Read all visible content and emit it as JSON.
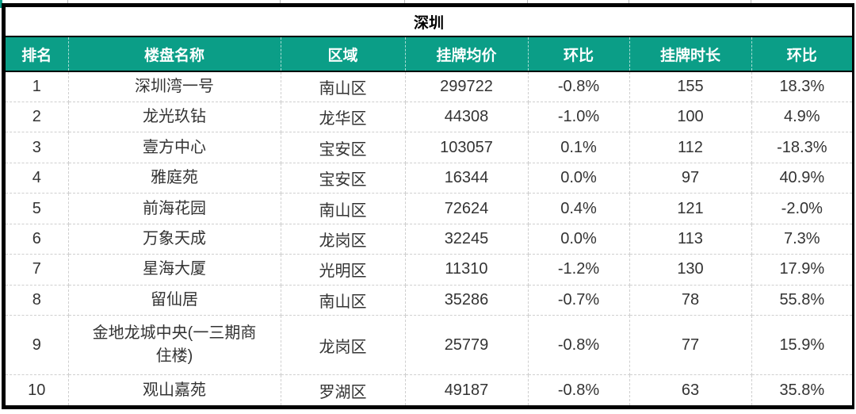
{
  "table": {
    "title": "深圳",
    "columns": [
      "排名",
      "楼盘名称",
      "区域",
      "挂牌均价",
      "环比",
      "挂牌时长",
      "环比"
    ],
    "rows": [
      {
        "rank": "1",
        "name": "深圳湾一号",
        "district": "南山区",
        "avg_price": "299722",
        "price_mom": "-0.8%",
        "listing_days": "155",
        "days_mom": "18.3%"
      },
      {
        "rank": "2",
        "name": "龙光玖钻",
        "district": "龙华区",
        "avg_price": "44308",
        "price_mom": "-1.0%",
        "listing_days": "100",
        "days_mom": "4.9%"
      },
      {
        "rank": "3",
        "name": "壹方中心",
        "district": "宝安区",
        "avg_price": "103057",
        "price_mom": "0.1%",
        "listing_days": "112",
        "days_mom": "-18.3%"
      },
      {
        "rank": "4",
        "name": "雅庭苑",
        "district": "宝安区",
        "avg_price": "16344",
        "price_mom": "0.0%",
        "listing_days": "97",
        "days_mom": "40.9%"
      },
      {
        "rank": "5",
        "name": "前海花园",
        "district": "南山区",
        "avg_price": "72624",
        "price_mom": "0.4%",
        "listing_days": "121",
        "days_mom": "-2.0%"
      },
      {
        "rank": "6",
        "name": "万象天成",
        "district": "龙岗区",
        "avg_price": "32245",
        "price_mom": "0.0%",
        "listing_days": "113",
        "days_mom": "7.3%"
      },
      {
        "rank": "7",
        "name": "星海大厦",
        "district": "光明区",
        "avg_price": "11310",
        "price_mom": "-1.2%",
        "listing_days": "130",
        "days_mom": "17.9%"
      },
      {
        "rank": "8",
        "name": "留仙居",
        "district": "南山区",
        "avg_price": "35286",
        "price_mom": "-0.7%",
        "listing_days": "78",
        "days_mom": "55.8%"
      },
      {
        "rank": "9",
        "name": "金地龙城中央(一三期商住楼)",
        "district": "龙岗区",
        "avg_price": "25779",
        "price_mom": "-0.8%",
        "listing_days": "77",
        "days_mom": "15.9%"
      },
      {
        "rank": "10",
        "name": "观山嘉苑",
        "district": "罗湖区",
        "avg_price": "49187",
        "price_mom": "-0.8%",
        "listing_days": "63",
        "days_mom": "35.8%"
      }
    ]
  },
  "colors": {
    "header_bg": "#0B9E87",
    "header_text": "#FFFFFF",
    "outer_border": "#000000",
    "grid_line": "#CFCFCF",
    "body_text": "#333333"
  },
  "layout_artifacts": {
    "remnant_tick_positions": [
      85,
      353,
      510,
      665,
      793,
      947
    ]
  }
}
